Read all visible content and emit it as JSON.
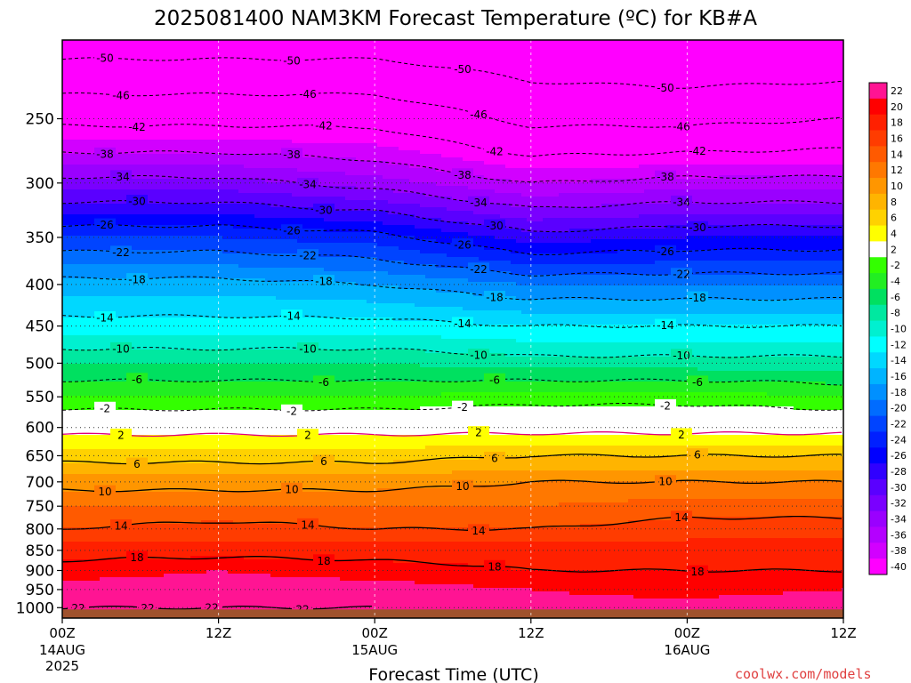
{
  "chart_data": {
    "type": "heatmap",
    "title": "2025081400 NAM3KM Forecast Temperature (ºC) for KB#A",
    "xlabel": "Forecast Time (UTC)",
    "ylabel": "",
    "credit": "coolwx.com/models",
    "y_scale": "log",
    "y_reversed": true,
    "ylim": [
      1030,
      200
    ],
    "y_ticks": [
      250,
      300,
      350,
      400,
      450,
      500,
      550,
      600,
      650,
      700,
      750,
      800,
      850,
      900,
      950,
      1000
    ],
    "y_tick_labels": [
      "250",
      "300",
      "350",
      "400",
      "450",
      "500",
      "550",
      "600",
      "650",
      "700",
      "750",
      "800",
      "850",
      "900",
      "950",
      "1000"
    ],
    "xlim": [
      0,
      60
    ],
    "x_ticks": [
      0,
      12,
      24,
      36,
      48,
      60
    ],
    "x_tick_labels": [
      "00Z",
      "12Z",
      "00Z",
      "12Z",
      "00Z",
      "12Z"
    ],
    "x_date_labels": [
      {
        "hour": 0,
        "lines": [
          "14AUG",
          "2025"
        ]
      },
      {
        "hour": 24,
        "lines": [
          "15AUG"
        ]
      },
      {
        "hour": 48,
        "lines": [
          "16AUG"
        ]
      }
    ],
    "grid": true,
    "ground_color": "#a0522d",
    "ground_pressure": 1005,
    "profile_hours": [
      0,
      12,
      24,
      36,
      48,
      60
    ],
    "profile_pressures": [
      200,
      250,
      300,
      350,
      400,
      450,
      500,
      550,
      600,
      650,
      700,
      750,
      800,
      850,
      900,
      950,
      1000
    ],
    "temperature_profiles": [
      [
        -52,
        -43,
        -33,
        -24,
        -17,
        -13,
        -8,
        -4,
        1,
        5,
        9,
        12,
        14,
        17,
        19,
        21,
        22
      ],
      [
        -52,
        -43,
        -33,
        -24,
        -17,
        -13,
        -8,
        -4,
        1,
        5,
        9,
        12,
        15,
        17,
        20,
        21,
        22
      ],
      [
        -52,
        -43,
        -35,
        -25,
        -18,
        -13,
        -8,
        -4,
        1,
        5,
        9,
        12,
        14,
        17,
        19,
        21,
        22
      ],
      [
        -53,
        -47,
        -38,
        -29,
        -20,
        -14,
        -9,
        -3,
        1,
        6,
        10,
        12,
        14,
        17,
        18,
        20,
        21
      ],
      [
        -54,
        -47,
        -37,
        -28,
        -20,
        -14,
        -9,
        -3,
        1,
        6,
        10,
        13,
        15,
        17,
        18,
        19,
        21
      ],
      [
        -54,
        -46,
        -37,
        -28,
        -20,
        -14,
        -9,
        -4,
        1,
        6,
        10,
        13,
        15,
        17,
        18,
        20,
        22
      ]
    ],
    "contour_levels": [
      -50,
      -46,
      -42,
      -38,
      -34,
      -30,
      -26,
      -22,
      -18,
      -14,
      -10,
      -6,
      -2,
      2,
      6,
      10,
      14,
      18,
      22
    ],
    "colorbar": {
      "labels": [
        "22",
        "20",
        "18",
        "16",
        "14",
        "12",
        "10",
        "8",
        "6",
        "4",
        "2",
        "-2",
        "-4",
        "-6",
        "-8",
        "-10",
        "-12",
        "-14",
        "-16",
        "-18",
        "-20",
        "-22",
        "-24",
        "-26",
        "-28",
        "-30",
        "-32",
        "-34",
        "-36",
        "-38",
        "-40"
      ],
      "colors": [
        "#ff1493",
        "#ff0000",
        "#ff2000",
        "#ff3c00",
        "#ff5a00",
        "#ff7800",
        "#ff9600",
        "#ffb400",
        "#ffd200",
        "#ffff00",
        "#ffffff",
        "#33ff00",
        "#22ee22",
        "#00e060",
        "#00e8a0",
        "#00f0d0",
        "#00ffff",
        "#00d8ff",
        "#00b4ff",
        "#0090ff",
        "#006cff",
        "#0044ff",
        "#0020ff",
        "#0000ff",
        "#3000ff",
        "#5a00ff",
        "#7a00ff",
        "#9a00ff",
        "#b400ff",
        "#d200ff",
        "#ff00ff"
      ]
    }
  }
}
